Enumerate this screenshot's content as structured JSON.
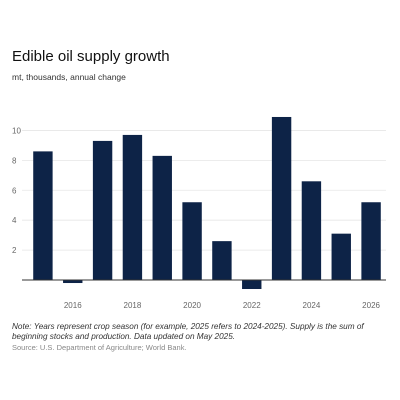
{
  "title": "Edible oil supply growth",
  "subtitle": "mt, thousands, annual change",
  "note": "Note: Years represent crop season (for example, 2025 refers to 2024-2025). Supply is the sum of beginning stocks and production. Data updated on May 2025.",
  "source": "Source: U.S. Department of Agriculture; World Bank.",
  "colors": {
    "bar": "#0d2347",
    "grid": "#e6e6e6",
    "axis": "#333333"
  },
  "chart_data": {
    "type": "bar",
    "title": "Edible oil supply growth",
    "subtitle": "mt, thousands, annual change",
    "xlabel": "",
    "ylabel": "",
    "categories": [
      2015,
      2016,
      2017,
      2018,
      2019,
      2020,
      2021,
      2022,
      2023,
      2024,
      2025,
      2026
    ],
    "values": [
      8.6,
      -0.2,
      9.3,
      9.7,
      8.3,
      5.2,
      2.6,
      -0.6,
      10.9,
      6.6,
      3.1,
      5.2
    ],
    "x_tick_labels": [
      "2016",
      "2018",
      "2020",
      "2022",
      "2024",
      "2026"
    ],
    "y_tick_labels": [
      "2",
      "4",
      "6",
      "8",
      "10"
    ],
    "ylim": [
      -0.8,
      11.5
    ],
    "grid": true,
    "legend": "none"
  }
}
